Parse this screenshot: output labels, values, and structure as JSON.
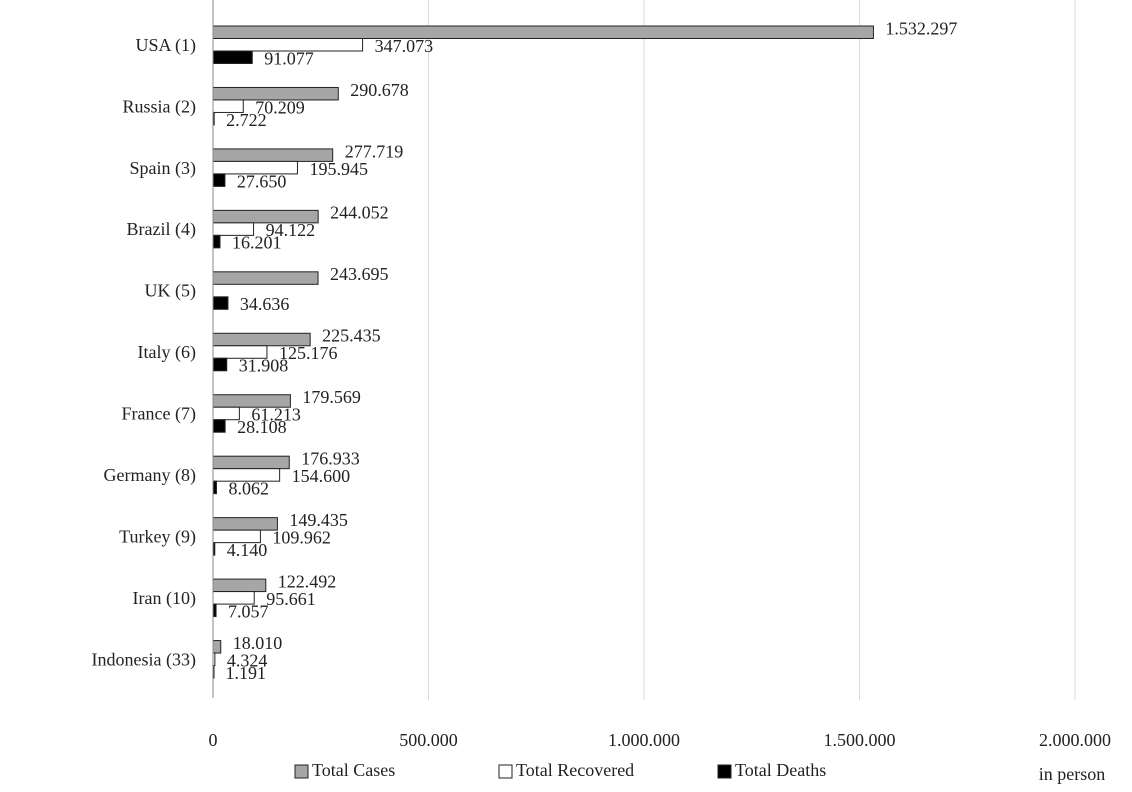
{
  "chart_data": {
    "type": "hbar",
    "categories": [
      "USA (1)",
      "Russia (2)",
      "Spain (3)",
      "Brazil (4)",
      "UK (5)",
      "Italy (6)",
      "France (7)",
      "Germany (8)",
      "Turkey (9)",
      "Iran (10)",
      "Indonesia (33)"
    ],
    "series": [
      {
        "name": "Total Cases",
        "color": "#a6a6a6",
        "values": [
          1532297,
          290678,
          277719,
          244052,
          243695,
          225435,
          179569,
          176933,
          149435,
          122492,
          18010
        ],
        "value_labels": [
          "1.532.297",
          "290.678",
          "277.719",
          "244.052",
          "243.695",
          "225.435",
          "179.569",
          "176.933",
          "149.435",
          "122.492",
          "18.010"
        ]
      },
      {
        "name": "Total Recovered",
        "color": "#ffffff",
        "values": [
          347073,
          70209,
          195945,
          94122,
          null,
          125176,
          61213,
          154600,
          109962,
          95661,
          4324
        ],
        "value_labels": [
          "347.073",
          "70.209",
          "195.945",
          "94.122",
          null,
          "125.176",
          "61.213",
          "154.600",
          "109.962",
          "95.661",
          "4.324"
        ]
      },
      {
        "name": "Total Deaths",
        "color": "#000000",
        "values": [
          91077,
          2722,
          27650,
          16201,
          34636,
          31908,
          28108,
          8062,
          4140,
          7057,
          1191
        ],
        "value_labels": [
          "91.077",
          "2.722",
          "27.650",
          "16.201",
          "34.636",
          "31.908",
          "28.108",
          "8.062",
          "4.140",
          "7.057",
          "1.191"
        ]
      }
    ],
    "xlim": [
      0,
      2000000
    ],
    "xticks": [
      0,
      {
        "value": 500000,
        "label": "500.000"
      },
      {
        "value": 1000000,
        "label": "1.000.000"
      },
      {
        "value": 1500000,
        "label": "1.500.000"
      },
      {
        "value": 2000000,
        "label": "2.000.000"
      }
    ],
    "x_label": "in person",
    "grid": true
  }
}
